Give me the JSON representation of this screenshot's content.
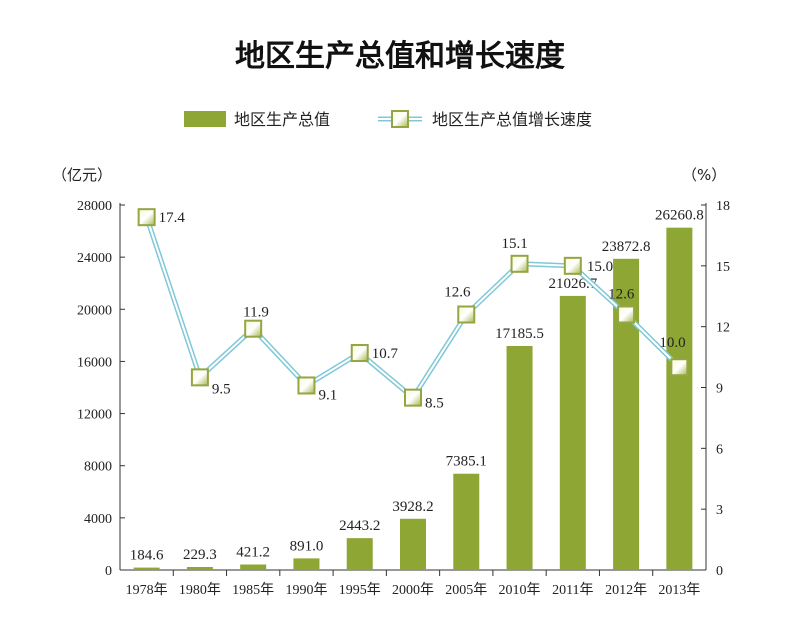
{
  "chart_data": {
    "type": "bar",
    "title": "地区生产总值和增长速度",
    "categories": [
      "1978年",
      "1980年",
      "1985年",
      "1990年",
      "1995年",
      "2000年",
      "2005年",
      "2010年",
      "2011年",
      "2012年",
      "2013年"
    ],
    "series": [
      {
        "name": "地区生产总值",
        "type": "bar",
        "axis": "left",
        "color": "#8ea634",
        "values": [
          184.6,
          229.3,
          421.2,
          891.0,
          2443.2,
          3928.2,
          7385.1,
          17185.5,
          21026.7,
          23872.8,
          26260.8
        ],
        "labels": [
          "184.6",
          "229.3",
          "421.2",
          "891.0",
          "2443.2",
          "3928.2",
          "7385.1",
          "17185.5",
          "21026.7",
          "23872.8",
          "26260.8"
        ]
      },
      {
        "name": "地区生产总值增长速度",
        "type": "line",
        "axis": "right",
        "color": "#7fc8d8",
        "values": [
          17.4,
          9.5,
          11.9,
          9.1,
          10.7,
          8.5,
          12.6,
          15.1,
          15.0,
          12.6,
          10.0
        ],
        "labels": [
          "17.4",
          "9.5",
          "11.9",
          "9.1",
          "10.7",
          "8.5",
          "12.6",
          "15.1",
          "15.0",
          "12.6",
          "10.0"
        ]
      }
    ],
    "left_axis": {
      "unit": "（亿元）",
      "ylim": [
        0,
        28000
      ],
      "ticks": [
        "0",
        "4000",
        "8000",
        "12000",
        "16000",
        "20000",
        "24000",
        "28000"
      ]
    },
    "right_axis": {
      "unit": "（%）",
      "ylim": [
        0,
        18
      ],
      "ticks": [
        "0",
        "3",
        "6",
        "9",
        "12",
        "15",
        "18"
      ]
    },
    "grid": false,
    "legend_position": "top-center"
  }
}
